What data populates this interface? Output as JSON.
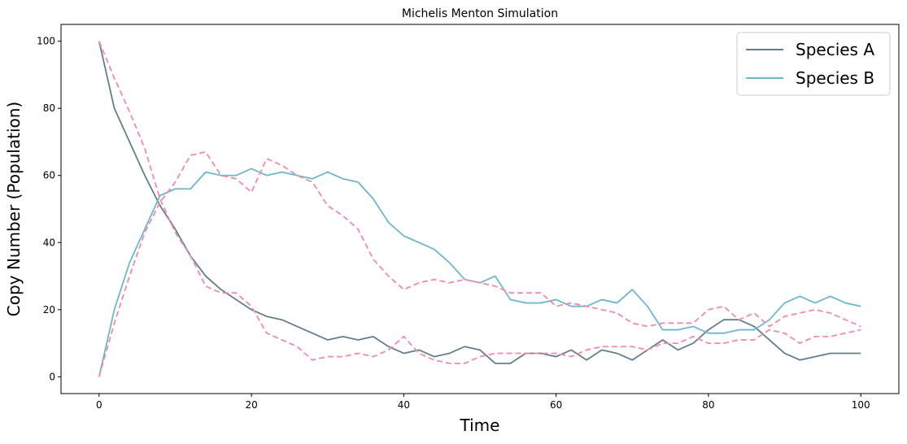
{
  "chart_data": {
    "type": "line",
    "title": "Michelis Menton Simulation",
    "xlabel": "Time",
    "ylabel": "Copy Number (Population)",
    "xlim": [
      -5,
      105
    ],
    "ylim": [
      -5,
      105
    ],
    "xticks": [
      0,
      20,
      40,
      60,
      80,
      100
    ],
    "yticks": [
      0,
      20,
      40,
      60,
      80,
      100
    ],
    "grid": false,
    "legend_position": "top-right",
    "x": [
      0,
      2,
      4,
      6,
      8,
      10,
      12,
      14,
      16,
      18,
      20,
      22,
      24,
      26,
      28,
      30,
      32,
      34,
      36,
      38,
      40,
      42,
      44,
      46,
      48,
      50,
      52,
      54,
      56,
      58,
      60,
      62,
      64,
      66,
      68,
      70,
      72,
      74,
      76,
      78,
      80,
      82,
      84,
      86,
      88,
      90,
      92,
      94,
      96,
      98,
      100
    ],
    "series": [
      {
        "name": "Species A",
        "color": "#647f8b",
        "dashed": false,
        "values": [
          100,
          80,
          70,
          60,
          51,
          44,
          36,
          30,
          26,
          23,
          20,
          18,
          17,
          15,
          13,
          11,
          12,
          11,
          12,
          9,
          7,
          8,
          6,
          7,
          9,
          8,
          4,
          4,
          7,
          7,
          6,
          8,
          5,
          8,
          7,
          5,
          8,
          11,
          8,
          10,
          14,
          17,
          17,
          15,
          11,
          7,
          5,
          6,
          7,
          7,
          7
        ]
      },
      {
        "name": "Species B",
        "color": "#6cb8cf",
        "dashed": false,
        "values": [
          0,
          20,
          34,
          44,
          54,
          56,
          56,
          61,
          60,
          60,
          62,
          60,
          61,
          60,
          59,
          61,
          59,
          58,
          53,
          46,
          42,
          40,
          38,
          34,
          29,
          28,
          30,
          23,
          22,
          22,
          23,
          21,
          21,
          23,
          22,
          26,
          21,
          14,
          14,
          15,
          13,
          13,
          14,
          14,
          17,
          22,
          24,
          22,
          24,
          22,
          21
        ]
      },
      {
        "name": "",
        "color": "#f48aa6",
        "dashed": true,
        "values": [
          100,
          89,
          79,
          68,
          53,
          43,
          36,
          27,
          25,
          25,
          21,
          13,
          11,
          9,
          5,
          6,
          6,
          7,
          6,
          8,
          12,
          7,
          5,
          4,
          4,
          6,
          7,
          7,
          7,
          7,
          7,
          6,
          8,
          9,
          9,
          9,
          8,
          10,
          10,
          12,
          10,
          10,
          11,
          11,
          14,
          13,
          10,
          12,
          12,
          13,
          14
        ]
      },
      {
        "name": "",
        "color": "#f48aa6",
        "dashed": true,
        "values": [
          0,
          16,
          30,
          43,
          52,
          58,
          66,
          67,
          60,
          59,
          55,
          65,
          63,
          60,
          58,
          51,
          48,
          44,
          35,
          30,
          26,
          28,
          29,
          28,
          29,
          28,
          27,
          25,
          25,
          25,
          21,
          22,
          21,
          20,
          19,
          16,
          15,
          16,
          16,
          16,
          20,
          21,
          17,
          19,
          15,
          18,
          19,
          20,
          19,
          17,
          15
        ]
      }
    ]
  }
}
